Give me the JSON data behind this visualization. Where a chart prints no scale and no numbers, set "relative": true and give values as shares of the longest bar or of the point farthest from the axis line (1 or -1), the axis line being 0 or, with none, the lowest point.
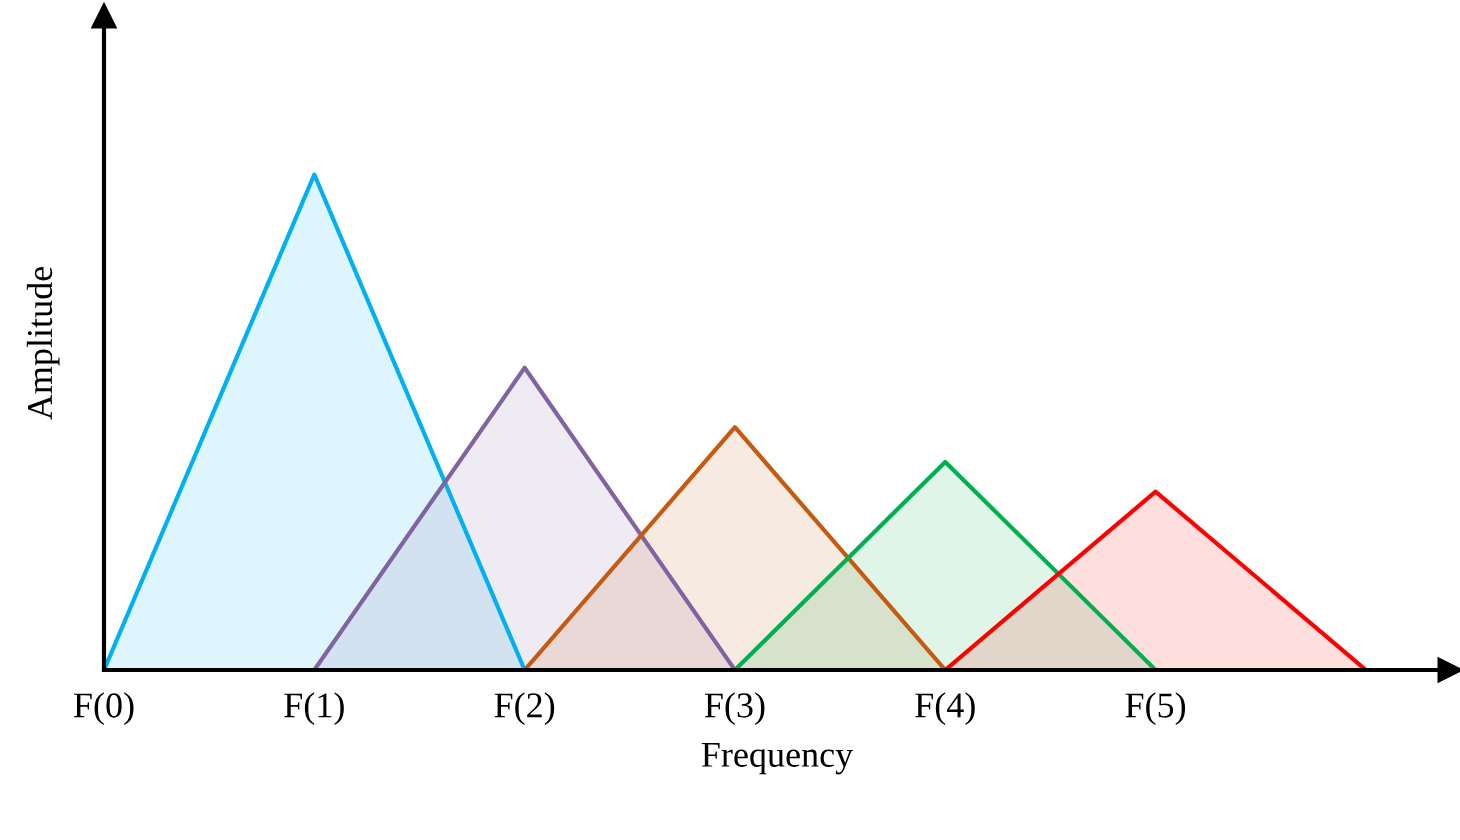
{
  "chart_data": {
    "type": "area",
    "relative": true,
    "xlabel": "Frequency",
    "ylabel": "Amplitude",
    "categories": [
      "F(0)",
      "F(1)",
      "F(2)",
      "F(3)",
      "F(4)",
      "F(5)",
      null
    ],
    "series": [
      {
        "color": "#00b0f0",
        "values": [
          0,
          1,
          0,
          null,
          null,
          null,
          null
        ]
      },
      {
        "color": "#8064a2",
        "values": [
          null,
          0,
          0.61,
          0,
          null,
          null,
          null
        ]
      },
      {
        "color": "#c55a11",
        "values": [
          null,
          null,
          0,
          0.49,
          0,
          null,
          null
        ]
      },
      {
        "color": "#00b050",
        "values": [
          null,
          null,
          null,
          0,
          0.42,
          0,
          null
        ]
      },
      {
        "color": "#ff0000",
        "values": [
          null,
          null,
          null,
          null,
          0,
          0.36,
          0
        ]
      }
    ]
  }
}
